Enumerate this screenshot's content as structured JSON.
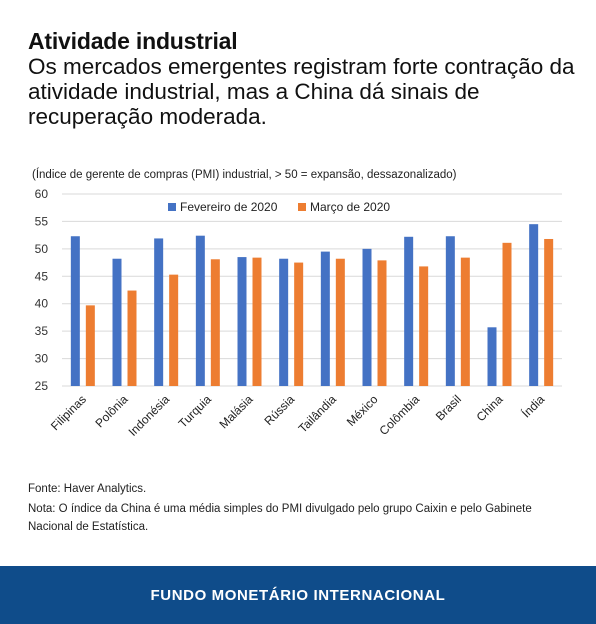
{
  "header": {
    "title": "Atividade industrial",
    "subtitle": "Os mercados emergentes registram forte contração da atividade industrial, mas a China dá sinais de recuperação moderada."
  },
  "notes": {
    "source": "Fonte: Haver Analytics.",
    "note": "Nota: O índice da China é uma média simples do PMI divulgado pelo grupo Caixin e pelo Gabinete Nacional de Estatística."
  },
  "footer": {
    "label": "FUNDO MONETÁRIO INTERNACIONAL",
    "background_color": "#0f4c8a"
  },
  "chart_data": {
    "type": "bar",
    "title": "(Índice de gerente de compras (PMI) industrial, > 50 = expansão, dessazonalizado)",
    "xlabel": "",
    "ylabel": "",
    "ylim": [
      25,
      60
    ],
    "yticks": [
      25,
      30,
      35,
      40,
      45,
      50,
      55,
      60
    ],
    "grid": true,
    "legend_position": "top-center",
    "categories": [
      "Filipinas",
      "Polônia",
      "Indonésia",
      "Turquia",
      "Malásia",
      "Rússia",
      "Tailândia",
      "México",
      "Colômbia",
      "Brasil",
      "China",
      "Índia"
    ],
    "series": [
      {
        "name": "Fevereiro de 2020",
        "color": "#4472c4",
        "values": [
          52.3,
          48.2,
          51.9,
          52.4,
          48.5,
          48.2,
          49.5,
          50.0,
          52.2,
          52.3,
          35.7,
          54.5
        ]
      },
      {
        "name": "Março de 2020",
        "color": "#ed7d31",
        "values": [
          39.7,
          42.4,
          45.3,
          48.1,
          48.4,
          47.5,
          48.2,
          47.9,
          46.8,
          48.4,
          51.1,
          51.8
        ]
      }
    ]
  }
}
